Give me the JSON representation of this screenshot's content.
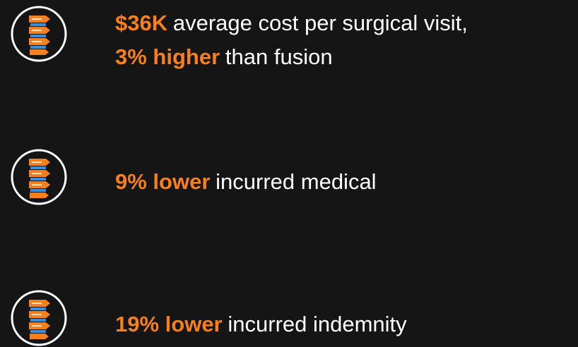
{
  "items": [
    {
      "lines": [
        {
          "highlight": "$36K",
          "text": "average cost per surgical visit,"
        },
        {
          "highlight": "3% higher",
          "text": "than fusion"
        }
      ]
    },
    {
      "lines": [
        {
          "highlight": "9% lower",
          "text": "incurred medical"
        }
      ]
    },
    {
      "lines": [
        {
          "highlight": "19% lower",
          "text": "incurred indemnity"
        }
      ]
    }
  ]
}
